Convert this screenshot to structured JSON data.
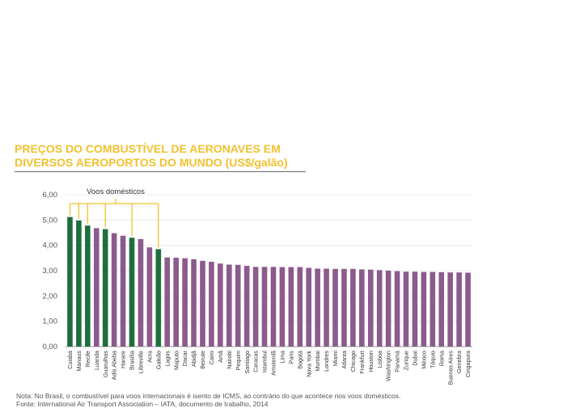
{
  "chart_data": {
    "type": "bar",
    "title": "PREÇOS DO COMBUSTÍVEL DE AERONAVES EM\nDIVERSOS AEROPORTOS DO MUNDO (US$/galão)",
    "ylim": [
      0,
      6
    ],
    "yticks": [
      "0,00",
      "1,00",
      "2,00",
      "3,00",
      "4,00",
      "5,00",
      "6,00"
    ],
    "grid": true,
    "categories": [
      "Cuiabá",
      "Manaus",
      "Recife",
      "Luanda",
      "Guarulhos",
      "Adis Abeba",
      "Harare",
      "Brasília",
      "Libreville",
      "Acra",
      "Galeão",
      "Lagos",
      "Maputo",
      "Dacar",
      "Abidjã",
      "Beirute",
      "Cairo",
      "Amã",
      "Nairobi",
      "Pequim",
      "Santiago",
      "Caracas",
      "Istambul",
      "Amsterdã",
      "Lima",
      "Paris",
      "Bogotá",
      "Nova York",
      "Mumbai",
      "Londres",
      "Miami",
      "Atlanta",
      "Chicago",
      "Frankfurt",
      "Houston",
      "Lisboa",
      "Washington",
      "Panamá",
      "Zurique",
      "Dubai",
      "México",
      "Tóquio",
      "Roma",
      "Buenos Aires",
      "Genebra",
      "Cingapura"
    ],
    "values": [
      5.12,
      4.98,
      4.78,
      4.68,
      4.64,
      4.48,
      4.38,
      4.3,
      4.25,
      3.92,
      3.85,
      3.52,
      3.51,
      3.49,
      3.45,
      3.39,
      3.35,
      3.28,
      3.24,
      3.23,
      3.19,
      3.15,
      3.15,
      3.15,
      3.14,
      3.14,
      3.14,
      3.11,
      3.08,
      3.08,
      3.07,
      3.07,
      3.07,
      3.05,
      3.04,
      3.02,
      3.0,
      2.98,
      2.96,
      2.96,
      2.95,
      2.95,
      2.94,
      2.93,
      2.93,
      2.92
    ],
    "domestic": [
      true,
      true,
      true,
      false,
      true,
      false,
      false,
      true,
      false,
      false,
      true,
      false,
      false,
      false,
      false,
      false,
      false,
      false,
      false,
      false,
      false,
      false,
      false,
      false,
      false,
      false,
      false,
      false,
      false,
      false,
      false,
      false,
      false,
      false,
      false,
      false,
      false,
      false,
      false,
      false,
      false,
      false,
      false,
      false,
      false,
      false
    ],
    "annotation": "Voos domésticos",
    "colors": {
      "domestic": "#1f6e3e",
      "international": "#8c5a8c",
      "bracket": "#f2c12e",
      "grid": "#e6e6e6"
    }
  },
  "notes": {
    "note": "Nota: No Brasil, o combustível para voos internacionais é isento de ICMS, ao contrário do que acontece nos voos domésticos.",
    "source": "Fonte: International Air Transport Association – IATA, documento de trabalho, 2014"
  }
}
